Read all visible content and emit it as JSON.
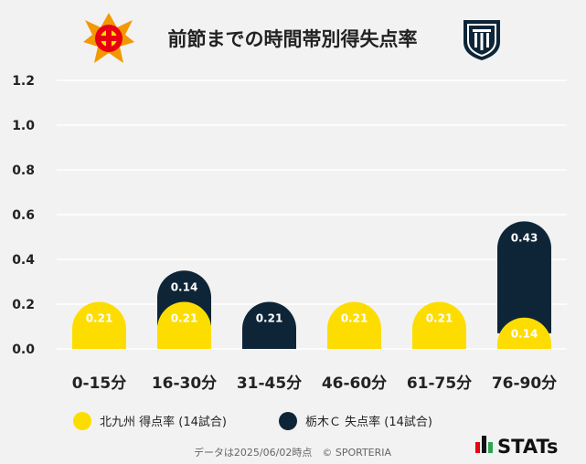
{
  "header": {
    "title": "前節までの時間帯別得失点率",
    "home_logo": "kitakyushu-emblem-icon",
    "away_logo": "tochigi-city-emblem-icon"
  },
  "colors": {
    "home": "#FDDD00",
    "away": "#0E2537",
    "grid": "#ffffff",
    "background": "#f2f2f2"
  },
  "chart_data": {
    "type": "bar",
    "title": "前節までの時間帯別得失点率",
    "categories": [
      "0-15分",
      "16-30分",
      "31-45分",
      "46-60分",
      "61-75分",
      "76-90分"
    ],
    "series": [
      {
        "name": "北九州 得点率 (14試合)",
        "values": [
          0.21,
          0.21,
          0,
          0.21,
          0.21,
          0.14
        ]
      },
      {
        "name": "栃木Ｃ 失点率 (14試合)",
        "values": [
          0,
          0.14,
          0.21,
          0,
          0,
          0.43
        ]
      }
    ],
    "labels": [
      [
        "0.21",
        "0.21",
        "",
        "0.21",
        "0.21",
        "0.14"
      ],
      [
        "",
        "0.14",
        "0.21",
        "",
        "",
        "0.43"
      ]
    ],
    "yticks": [
      "0.0",
      "0.2",
      "0.4",
      "0.6",
      "0.8",
      "1.0",
      "1.2"
    ],
    "ylim": [
      0,
      1.2
    ],
    "xlabel": "",
    "ylabel": "",
    "stacked": true,
    "legend_position": "bottom"
  },
  "footer": {
    "note": "データは2025/06/02時点　© SPORTERIA",
    "brand": "STATs"
  }
}
